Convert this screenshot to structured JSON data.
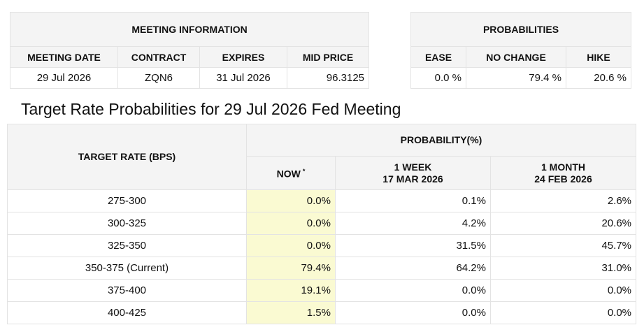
{
  "meeting_info": {
    "section_title": "MEETING INFORMATION",
    "headers": [
      "MEETING DATE",
      "CONTRACT",
      "EXPIRES",
      "MID PRICE"
    ],
    "row": {
      "meeting_date": "29 Jul 2026",
      "contract": "ZQN6",
      "expires": "31 Jul 2026",
      "mid_price": "96.3125"
    }
  },
  "probabilities": {
    "section_title": "PROBABILITIES",
    "headers": [
      "EASE",
      "NO CHANGE",
      "HIKE"
    ],
    "row": {
      "ease": "0.0 %",
      "no_change": "79.4 %",
      "hike": "20.6 %"
    }
  },
  "target_rate": {
    "title": "Target Rate Probabilities for 29 Jul 2026 Fed Meeting",
    "rate_header": "TARGET RATE (BPS)",
    "prob_header": "PROBABILITY(%)",
    "now_header": "NOW",
    "now_marker": "*",
    "week_header": "1 WEEK",
    "week_date": "17 MAR 2026",
    "month_header": "1 MONTH",
    "month_date": "24 FEB 2026",
    "rows": [
      {
        "rate": "275-300",
        "now": "0.0%",
        "week": "0.1%",
        "month": "2.6%"
      },
      {
        "rate": "300-325",
        "now": "0.0%",
        "week": "4.2%",
        "month": "20.6%"
      },
      {
        "rate": "325-350",
        "now": "0.0%",
        "week": "31.5%",
        "month": "45.7%"
      },
      {
        "rate": "350-375 (Current)",
        "now": "79.4%",
        "week": "64.2%",
        "month": "31.0%"
      },
      {
        "rate": "375-400",
        "now": "19.1%",
        "week": "0.0%",
        "month": "0.0%"
      },
      {
        "rate": "400-425",
        "now": "1.5%",
        "week": "0.0%",
        "month": "0.0%"
      }
    ]
  },
  "colors": {
    "header_bg": "#f4f4f4",
    "now_highlight": "#fafad2",
    "border": "#e3e3e3"
  }
}
